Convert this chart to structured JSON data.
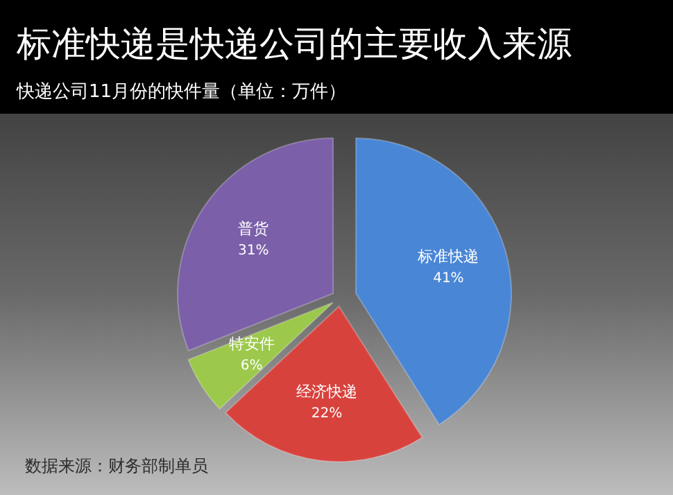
{
  "chart_data": {
    "type": "pie",
    "title": "标准快递是快递公司的主要收入来源",
    "subtitle": "快递公司11月份的快件量（单位：万件）",
    "categories": [
      "标准快递",
      "经济快递",
      "特安件",
      "普货"
    ],
    "values": [
      41,
      22,
      6,
      31
    ],
    "value_labels": [
      "41%",
      "22%",
      "6%",
      "31%"
    ],
    "colors": [
      "#4a86d6",
      "#d8423d",
      "#9cc84b",
      "#7b5fa9"
    ],
    "annotations": [
      "数据来源：财务部制单员"
    ]
  }
}
